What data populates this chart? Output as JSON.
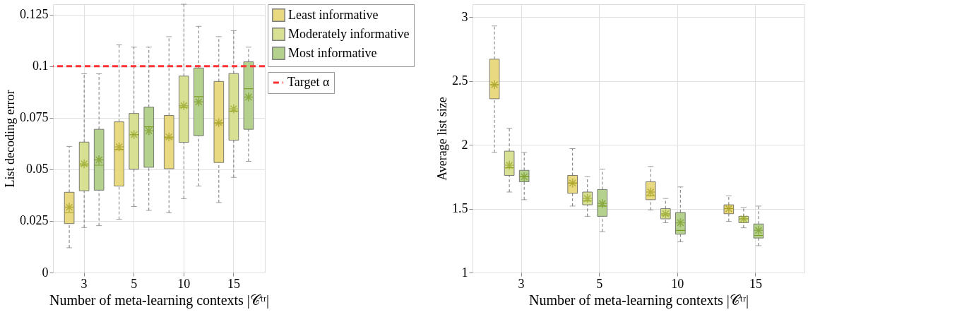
{
  "chart_data": [
    {
      "type": "box",
      "xlabel": "Number of meta-learning contexts |𝒞ᵗʳ|",
      "ylabel": "List decoding error",
      "categories": [
        "3",
        "5",
        "10",
        "15"
      ],
      "ylim": [
        0,
        0.13
      ],
      "yticks": [
        0,
        0.025,
        0.05,
        0.075,
        0.1,
        0.125
      ],
      "grid": true,
      "legend": "right",
      "marker": "star",
      "ref_lines": [
        {
          "axis": "y",
          "value": 0.1,
          "label": "Target α",
          "color": "#ff3333",
          "line_style": "dashed"
        }
      ],
      "series": [
        {
          "name": "Least informative",
          "color": "#e8d77a",
          "boxes": [
            {
              "low": 0.012,
              "q1": 0.0237,
              "median": 0.0289,
              "q3": 0.0389,
              "high": 0.0611,
              "mean": 0.0316
            },
            {
              "low": 0.0258,
              "q1": 0.0419,
              "median": 0.0596,
              "q3": 0.073,
              "high": 0.1103,
              "mean": 0.0609
            },
            {
              "low": 0.0289,
              "q1": 0.0503,
              "median": 0.0652,
              "q3": 0.0761,
              "high": 0.1143,
              "mean": 0.0657
            },
            {
              "low": 0.0339,
              "q1": 0.0533,
              "median": 0.0721,
              "q3": 0.0926,
              "high": 0.1143,
              "mean": 0.0726
            }
          ]
        },
        {
          "name": "Moderately informative",
          "color": "#d6df8e",
          "boxes": [
            {
              "low": 0.0218,
              "q1": 0.0396,
              "median": 0.052,
              "q3": 0.0632,
              "high": 0.0963,
              "mean": 0.0527
            },
            {
              "low": 0.032,
              "q1": 0.0501,
              "median": 0.0668,
              "q3": 0.0771,
              "high": 0.1092,
              "mean": 0.0668
            },
            {
              "low": 0.0358,
              "q1": 0.0631,
              "median": 0.0801,
              "q3": 0.0952,
              "high": 0.13,
              "mean": 0.0809
            },
            {
              "low": 0.0461,
              "q1": 0.0641,
              "median": 0.0782,
              "q3": 0.0964,
              "high": 0.1172,
              "mean": 0.0793
            }
          ]
        },
        {
          "name": "Most informative",
          "color": "#b0d088",
          "boxes": [
            {
              "low": 0.0227,
              "q1": 0.0399,
              "median": 0.052,
              "q3": 0.0694,
              "high": 0.0963,
              "mean": 0.0546
            },
            {
              "low": 0.0301,
              "q1": 0.051,
              "median": 0.0706,
              "q3": 0.0801,
              "high": 0.1092,
              "mean": 0.0687
            },
            {
              "low": 0.0419,
              "q1": 0.0663,
              "median": 0.0852,
              "q3": 0.0991,
              "high": 0.1193,
              "mean": 0.0827
            },
            {
              "low": 0.0539,
              "q1": 0.0694,
              "median": 0.0891,
              "q3": 0.1021,
              "high": 0.1092,
              "mean": 0.085
            }
          ]
        }
      ]
    },
    {
      "type": "box",
      "xlabel": "Number of meta-learning contexts |𝒞ᵗʳ|",
      "ylabel": "Average list size",
      "categories": [
        "3",
        "5",
        "10",
        "15"
      ],
      "ylim": [
        1,
        3.1
      ],
      "yticks": [
        1,
        1.5,
        2,
        2.5,
        3
      ],
      "grid": true,
      "marker": "star",
      "series": [
        {
          "color": "#e8d77a",
          "boxes": [
            {
              "low": 1.94,
              "q1": 2.36,
              "median": 2.47,
              "q3": 2.67,
              "high": 2.93,
              "mean": 2.47
            },
            {
              "low": 1.52,
              "q1": 1.62,
              "median": 1.7,
              "q3": 1.76,
              "high": 1.97,
              "mean": 1.7
            },
            {
              "low": 1.49,
              "q1": 1.57,
              "median": 1.6,
              "q3": 1.71,
              "high": 1.83,
              "mean": 1.63
            },
            {
              "low": 1.4,
              "q1": 1.46,
              "median": 1.5,
              "q3": 1.53,
              "high": 1.6,
              "mean": 1.5
            }
          ]
        },
        {
          "color": "#d6df8e",
          "boxes": [
            {
              "low": 1.63,
              "q1": 1.76,
              "median": 1.82,
              "q3": 1.95,
              "high": 2.13,
              "mean": 1.84
            },
            {
              "low": 1.44,
              "q1": 1.53,
              "median": 1.56,
              "q3": 1.63,
              "high": 1.75,
              "mean": 1.58
            },
            {
              "low": 1.39,
              "q1": 1.42,
              "median": 1.45,
              "q3": 1.5,
              "high": 1.58,
              "mean": 1.46
            },
            {
              "low": 1.35,
              "q1": 1.39,
              "median": 1.42,
              "q3": 1.44,
              "high": 1.51,
              "mean": 1.42
            }
          ]
        },
        {
          "color": "#b0d088",
          "boxes": [
            {
              "low": 1.57,
              "q1": 1.71,
              "median": 1.75,
              "q3": 1.8,
              "high": 1.94,
              "mean": 1.75
            },
            {
              "low": 1.32,
              "q1": 1.44,
              "median": 1.52,
              "q3": 1.65,
              "high": 1.81,
              "mean": 1.54
            },
            {
              "low": 1.24,
              "q1": 1.3,
              "median": 1.33,
              "q3": 1.47,
              "high": 1.67,
              "mean": 1.39
            },
            {
              "low": 1.21,
              "q1": 1.27,
              "median": 1.29,
              "q3": 1.38,
              "high": 1.52,
              "mean": 1.33
            }
          ]
        }
      ]
    }
  ]
}
